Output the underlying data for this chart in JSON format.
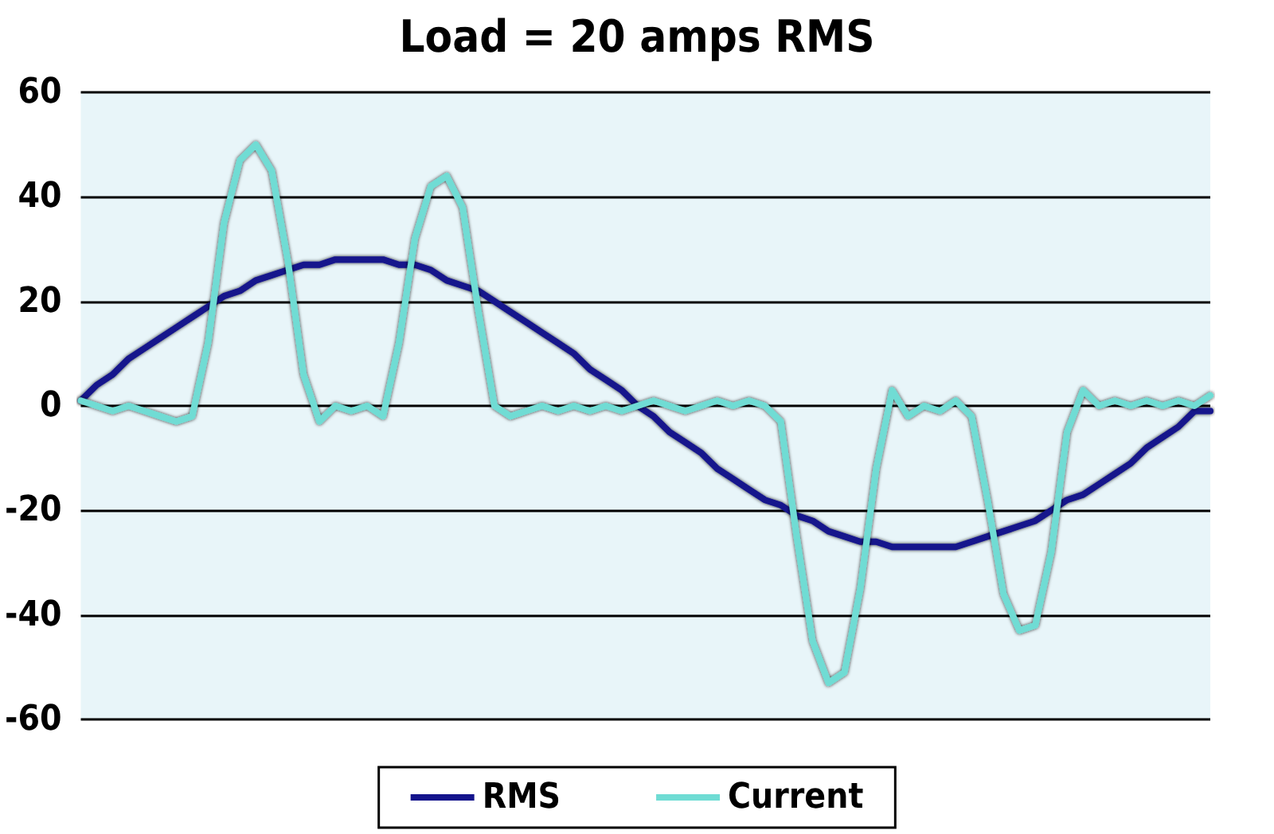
{
  "chart_data": {
    "type": "line",
    "title": "Load = 20 amps RMS",
    "categories": [
      null,
      null,
      null,
      null,
      null,
      null,
      null,
      null,
      null,
      null,
      null,
      null,
      null,
      null,
      null,
      null,
      null,
      null,
      null,
      null,
      null,
      null,
      null,
      null,
      null,
      null,
      null,
      null,
      null,
      null,
      null,
      null,
      null,
      null,
      null,
      null,
      null,
      null,
      null,
      null,
      null,
      null,
      null,
      null,
      null,
      null,
      null,
      null,
      null,
      null,
      null,
      null,
      null,
      null,
      null,
      null,
      null,
      null,
      null,
      null,
      null,
      null,
      null,
      null,
      null,
      null,
      null,
      null,
      null,
      null,
      null,
      null
    ],
    "series": [
      {
        "name": "RMS",
        "color": "#14148c",
        "values": [
          1,
          4,
          6,
          9,
          11,
          13,
          15,
          17,
          19,
          21,
          22,
          24,
          25,
          26,
          27,
          27,
          28,
          28,
          28,
          28,
          27,
          27,
          26,
          24,
          23,
          22,
          20,
          18,
          16,
          14,
          12,
          10,
          7,
          5,
          3,
          0,
          -2,
          -5,
          -7,
          -9,
          -12,
          -14,
          -16,
          -18,
          -19,
          -21,
          -22,
          -24,
          -25,
          -26,
          -26,
          -27,
          -27,
          -27,
          -27,
          -27,
          -26,
          -25,
          -24,
          -23,
          -22,
          -20,
          -18,
          -17,
          -15,
          -13,
          -11,
          -8,
          -6,
          -4,
          -1,
          -1
        ]
      },
      {
        "name": "Current",
        "color": "#6fdcd4",
        "values": [
          1,
          0,
          -1,
          0,
          -1,
          -2,
          -3,
          -2,
          12,
          35,
          47,
          50,
          45,
          28,
          6,
          -3,
          0,
          -1,
          0,
          -2,
          12,
          32,
          42,
          44,
          38,
          18,
          0,
          -2,
          -1,
          0,
          -1,
          0,
          -1,
          0,
          -1,
          0,
          1,
          0,
          -1,
          0,
          1,
          0,
          1,
          0,
          -3,
          -25,
          -45,
          -53,
          -51,
          -35,
          -12,
          3,
          -2,
          0,
          -1,
          1,
          -2,
          -18,
          -36,
          -43,
          -42,
          -28,
          -5,
          3,
          0,
          1,
          0,
          1,
          0,
          1,
          0,
          2
        ]
      }
    ],
    "ylim": [
      -60,
      60
    ],
    "yticks": [
      -60,
      -40,
      -20,
      0,
      20,
      40,
      60
    ],
    "grid": "y",
    "legend": "bottom",
    "marker": "none",
    "line_style": "solid"
  }
}
